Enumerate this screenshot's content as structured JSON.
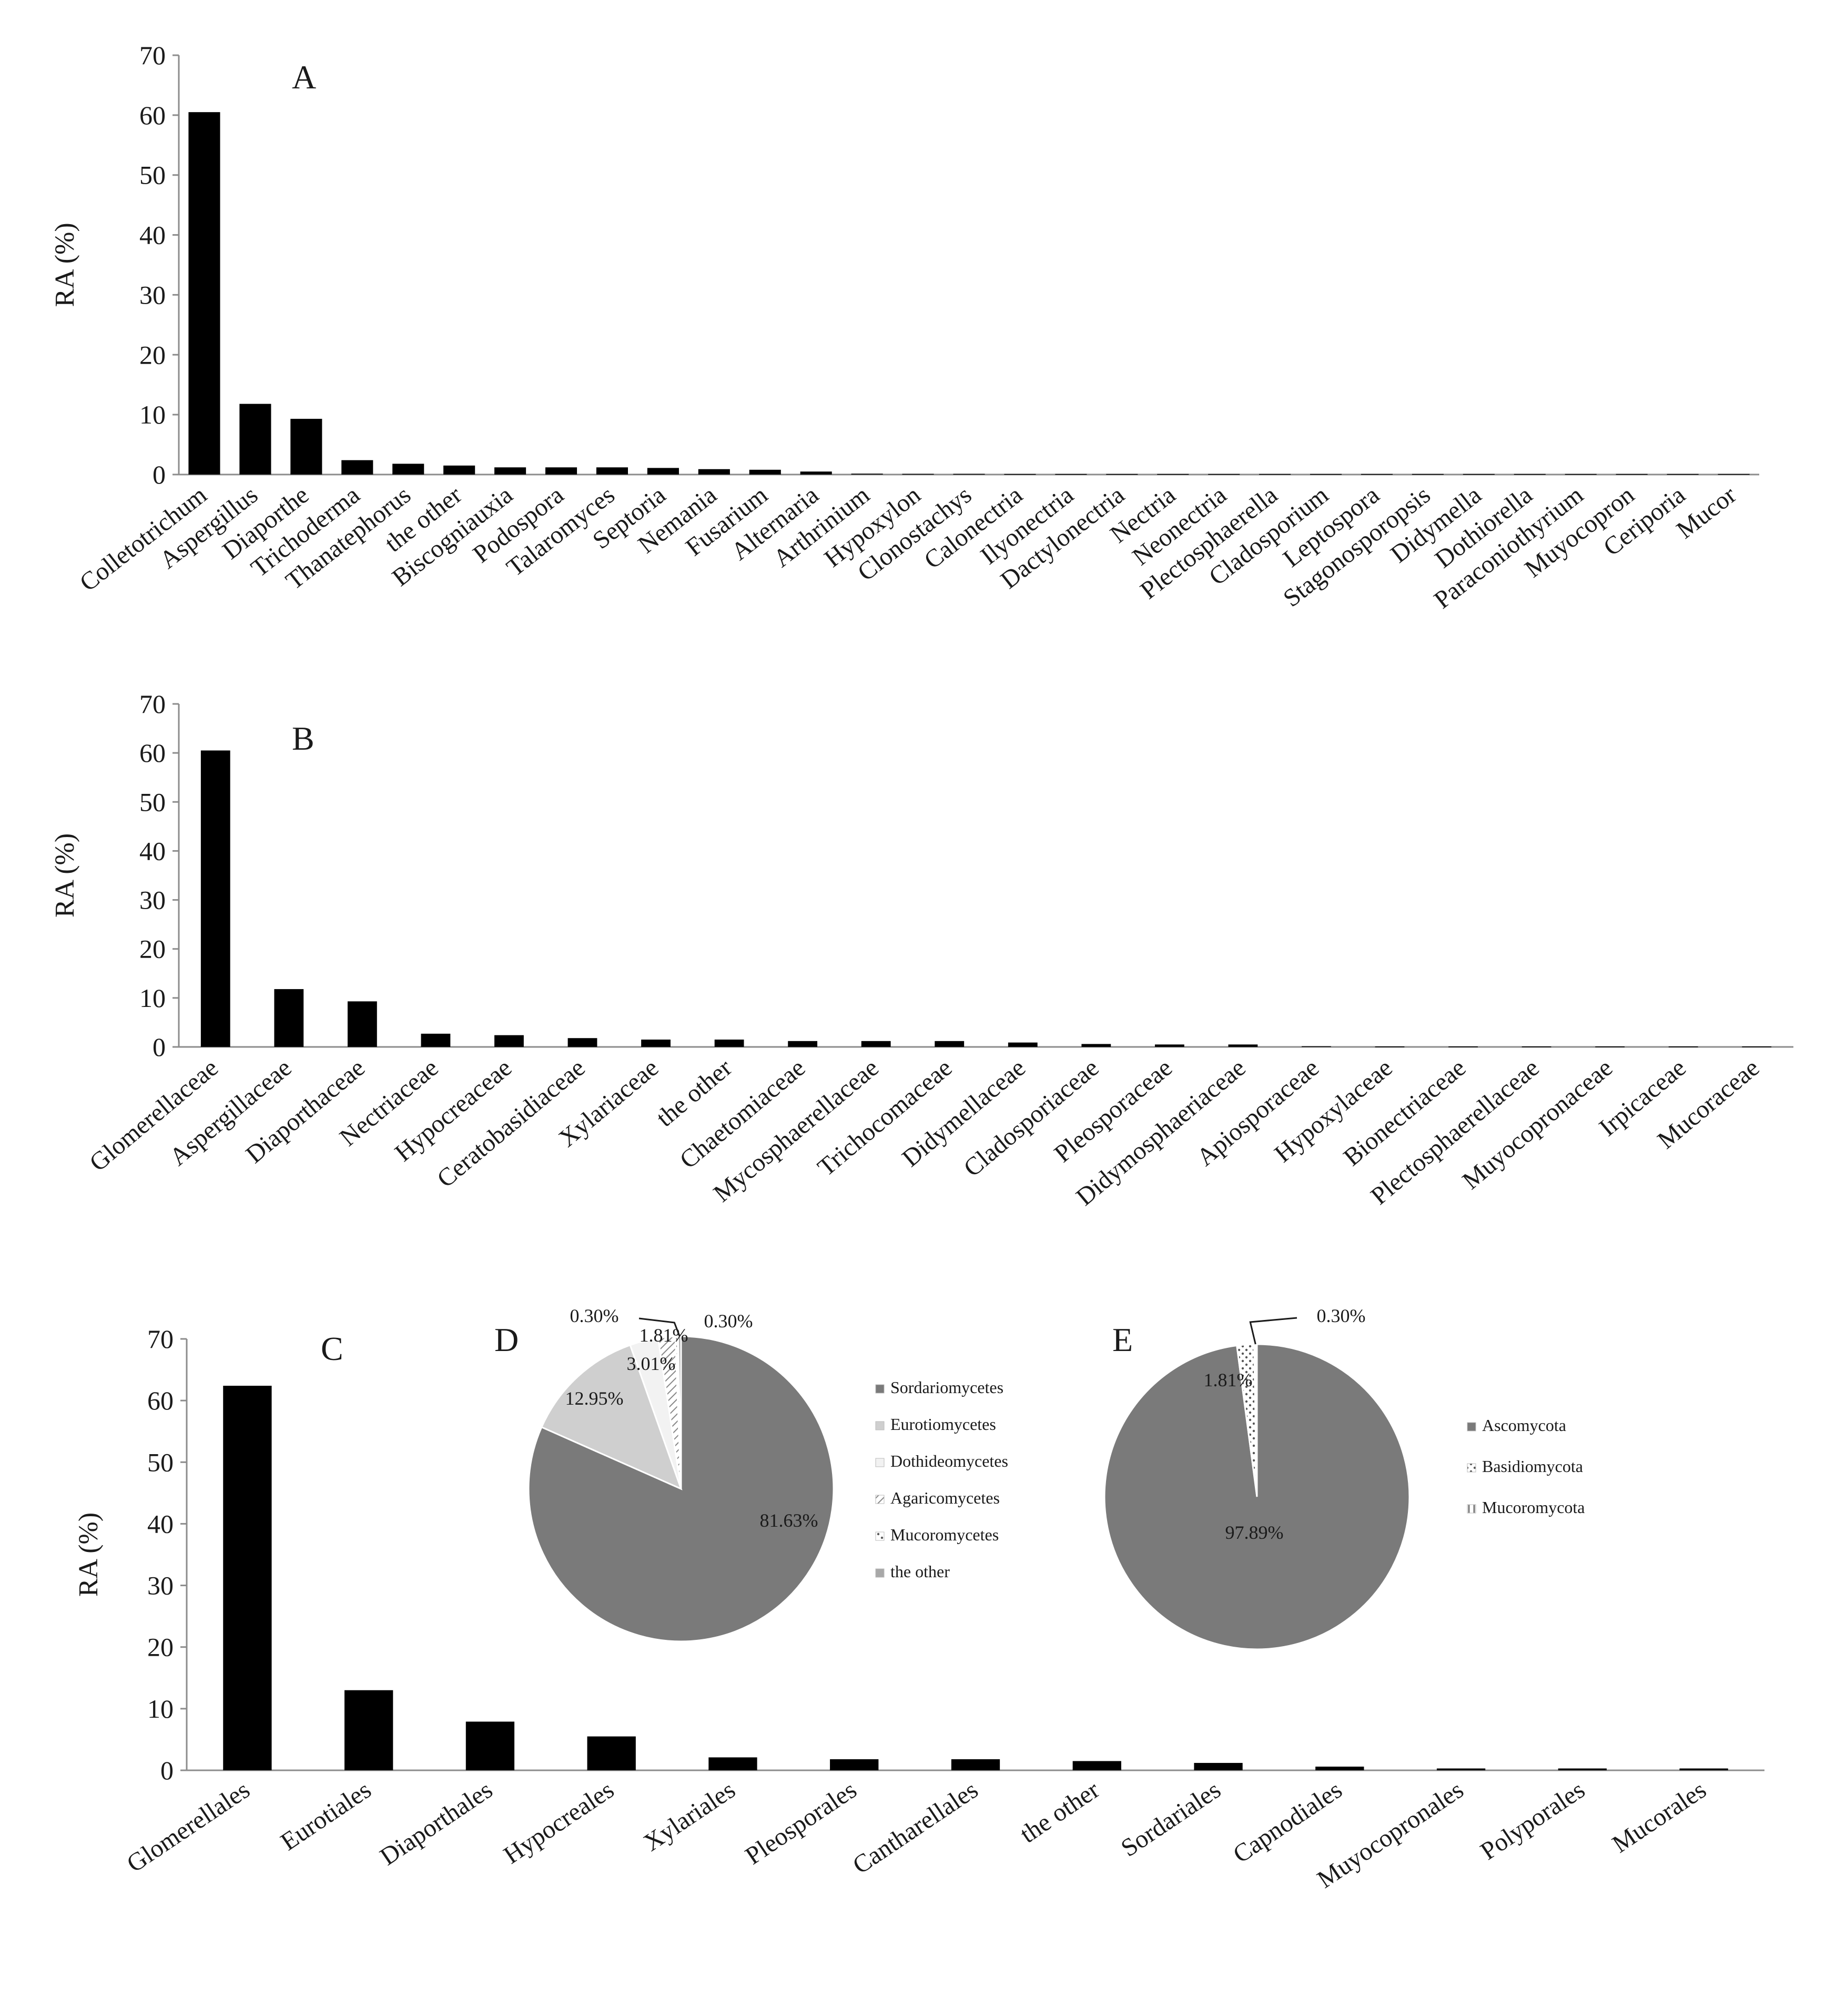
{
  "chart_data": [
    {
      "panel": "A",
      "type": "bar",
      "ylabel": "RA (%)",
      "ylim": [
        0,
        70
      ],
      "yticks": [
        0,
        10,
        20,
        30,
        40,
        50,
        60,
        70
      ],
      "categories": [
        "Colletotrichum",
        "Aspergillus",
        "Diaporthe",
        "Trichoderma",
        "Thanatephorus",
        "the other",
        "Biscogniauxia",
        "Podospora",
        "Talaromyces",
        "Septoria",
        "Nemania",
        "Fusarium",
        "Alternaria",
        "Arthrinium",
        "Hypoxylon",
        "Clonostachys",
        "Calonectria",
        "Ilyonectria",
        "Dactylonectria",
        "Nectria",
        "Neonectria",
        "Plectosphaerella",
        "Cladosporium",
        "Leptospora",
        "Stagonosporopsis",
        "Didymella",
        "Dothiorella",
        "Paraconiothyrium",
        "Muyocopron",
        "Ceriporia",
        "Mucor"
      ],
      "values": [
        60.5,
        11.8,
        9.3,
        2.4,
        1.8,
        1.5,
        1.2,
        1.2,
        1.2,
        1.1,
        0.9,
        0.8,
        0.5,
        0.15,
        0.12,
        0.12,
        0.1,
        0.1,
        0.1,
        0.1,
        0.1,
        0.1,
        0.1,
        0.1,
        0.1,
        0.1,
        0.1,
        0.1,
        0.1,
        0.1,
        0.1
      ]
    },
    {
      "panel": "B",
      "type": "bar",
      "ylabel": "RA (%)",
      "ylim": [
        0,
        70
      ],
      "yticks": [
        0,
        10,
        20,
        30,
        40,
        50,
        60,
        70
      ],
      "categories": [
        "Glomerellaceae",
        "Aspergillaceae",
        "Diaporthaceae",
        "Nectriaceae",
        "Hypocreaceae",
        "Ceratobasidiaceae",
        "Xylariaceae",
        "the other",
        "Chaetomiaceae",
        "Mycosphaerellaceae",
        "Trichocomaceae",
        "Didymellaceae",
        "Cladosporiaceae",
        "Pleosporaceae",
        "Didymosphaeriaceae",
        "Apiosporaceae",
        "Hypoxylaceae",
        "Bionectriaceae",
        "Plectosphaerellaceae",
        "Muyocopronaceae",
        "Irpicaceae",
        "Mucoraceae"
      ],
      "values": [
        60.5,
        11.8,
        9.3,
        2.7,
        2.4,
        1.8,
        1.5,
        1.5,
        1.2,
        1.2,
        1.2,
        0.9,
        0.6,
        0.5,
        0.5,
        0.15,
        0.1,
        0.1,
        0.1,
        0.1,
        0.1,
        0.1
      ]
    },
    {
      "panel": "C",
      "type": "bar",
      "ylabel": "RA (%)",
      "ylim": [
        0,
        70
      ],
      "yticks": [
        0,
        10,
        20,
        30,
        40,
        50,
        60,
        70
      ],
      "categories": [
        "Glomerellales",
        "Eurotiales",
        "Diaporthales",
        "Hypocreales",
        "Xylariales",
        "Pleosporales",
        "Cantharellales",
        "the other",
        "Sordariales",
        "Capnodiales",
        "Muyocopronales",
        "Polyporales",
        "Mucorales"
      ],
      "values": [
        62.4,
        13.0,
        7.9,
        5.5,
        2.1,
        1.8,
        1.8,
        1.5,
        1.2,
        0.6,
        0.3,
        0.3,
        0.3
      ]
    },
    {
      "panel": "D",
      "type": "pie",
      "labels": [
        "Sordariomycetes",
        "Eurotiomycetes",
        "Dothideomycetes",
        "Agaricomycetes",
        "Mucoromycetes",
        "the other"
      ],
      "values": [
        81.63,
        12.95,
        3.01,
        1.81,
        0.3,
        0.3
      ],
      "value_labels": [
        "81.63%",
        "12.95%",
        "3.01%",
        "1.81%",
        "0.30%",
        "0.30%"
      ],
      "legend_position": "right"
    },
    {
      "panel": "E",
      "type": "pie",
      "labels": [
        "Ascomycota",
        "Basidiomycota",
        "Mucoromycota"
      ],
      "values": [
        97.89,
        1.81,
        0.3
      ],
      "value_labels": [
        "97.89%",
        "1.81%",
        "0.30%"
      ],
      "legend_position": "right"
    }
  ],
  "colors": {
    "bar": "#000000",
    "axis": "#8c8c8c",
    "pie_main": "#7a7a7a",
    "pie_light": "#cfcfcf",
    "pie_pale": "#f2f2f2"
  }
}
